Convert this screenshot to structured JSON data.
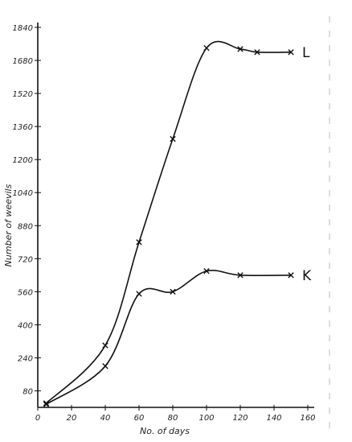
{
  "chart_data": {
    "type": "line",
    "title": "",
    "xlabel": "No. of days",
    "ylabel": "Number of weevils",
    "xlim": [
      0,
      160
    ],
    "ylim": [
      0,
      1840
    ],
    "xticks": [
      0,
      20,
      40,
      60,
      80,
      100,
      120,
      140,
      160
    ],
    "yticks": [
      80,
      240,
      400,
      560,
      720,
      880,
      1040,
      1200,
      1360,
      1520,
      1680,
      1840
    ],
    "grid": false,
    "legend": "none",
    "series": [
      {
        "name": "L",
        "x": [
          5,
          40,
          60,
          80,
          100,
          120,
          130,
          150
        ],
        "y": [
          20,
          300,
          800,
          1300,
          1740,
          1735,
          1720,
          1720
        ]
      },
      {
        "name": "K",
        "x": [
          5,
          40,
          60,
          80,
          100,
          120,
          150
        ],
        "y": [
          15,
          200,
          550,
          560,
          660,
          640,
          640
        ]
      }
    ]
  }
}
